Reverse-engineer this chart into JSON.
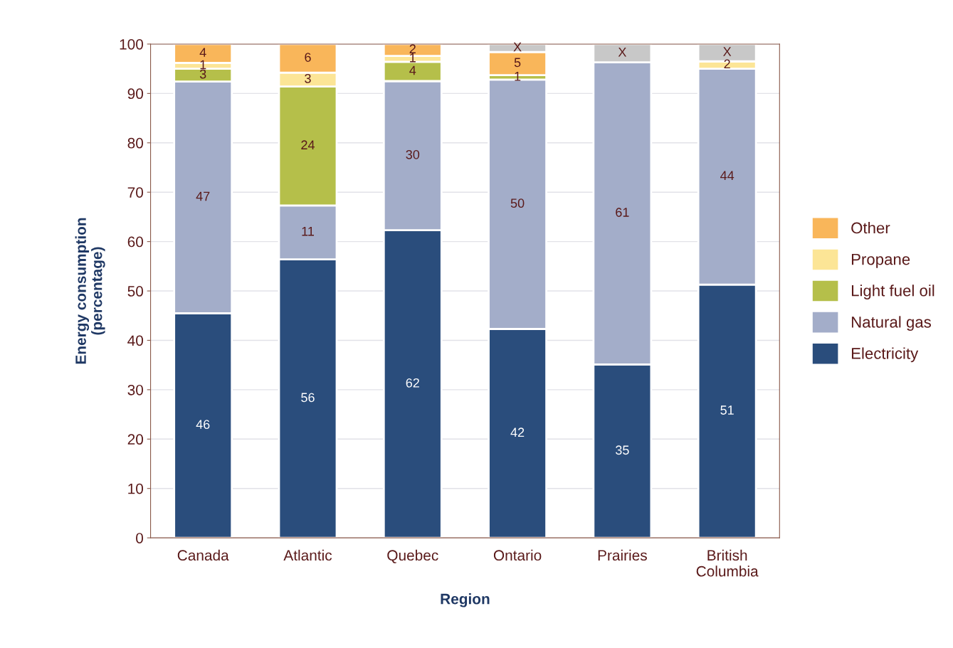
{
  "chart_data": {
    "type": "bar",
    "stacked": true,
    "xlabel": "Region",
    "ylabel": "Energy consumption\n(percentage)",
    "categories": [
      "Canada",
      "Atlantic",
      "Quebec",
      "Ontario",
      "Prairies",
      "British\nColumbia"
    ],
    "series": [
      {
        "name": "Electricity",
        "color": "#2a4d7c",
        "values": [
          45.5,
          56.4,
          62.3,
          42.3,
          35.1,
          51.3
        ],
        "value_labels": [
          "46",
          "56",
          "62",
          "42",
          "35",
          "51"
        ]
      },
      {
        "name": "Natural gas",
        "color": "#a3adc9",
        "values": [
          46.9,
          10.9,
          30.2,
          50.5,
          61.2,
          43.7
        ],
        "value_labels": [
          "47",
          "11",
          "30",
          "50",
          "61",
          "44"
        ]
      },
      {
        "name": "Light fuel oil",
        "color": "#b5bf4a",
        "values": [
          2.6,
          24.1,
          3.9,
          0.9,
          null,
          null
        ],
        "value_labels": [
          "3",
          "24",
          "4",
          "1",
          null,
          null
        ]
      },
      {
        "name": "Propane",
        "color": "#fce596",
        "values": [
          1.2,
          2.8,
          1.2,
          null,
          null,
          1.5
        ],
        "value_labels": [
          "1",
          "3",
          "1",
          null,
          null,
          "2"
        ]
      },
      {
        "name": "Other",
        "color": "#f9b65a",
        "values": [
          3.8,
          5.8,
          2.4,
          4.7,
          null,
          null
        ],
        "value_labels": [
          "4",
          "6",
          "2",
          "5",
          null,
          null
        ]
      },
      {
        "color": "#c8c8c8",
        "values": [
          null,
          null,
          null,
          1.6,
          3.7,
          3.5
        ],
        "value_labels": [
          null,
          null,
          null,
          "X",
          "X",
          "X"
        ]
      }
    ],
    "ylim": [
      0,
      100
    ],
    "yticks": [
      0,
      10,
      20,
      30,
      40,
      50,
      60,
      70,
      80,
      90,
      100
    ],
    "grid": "y",
    "legend": "right"
  }
}
